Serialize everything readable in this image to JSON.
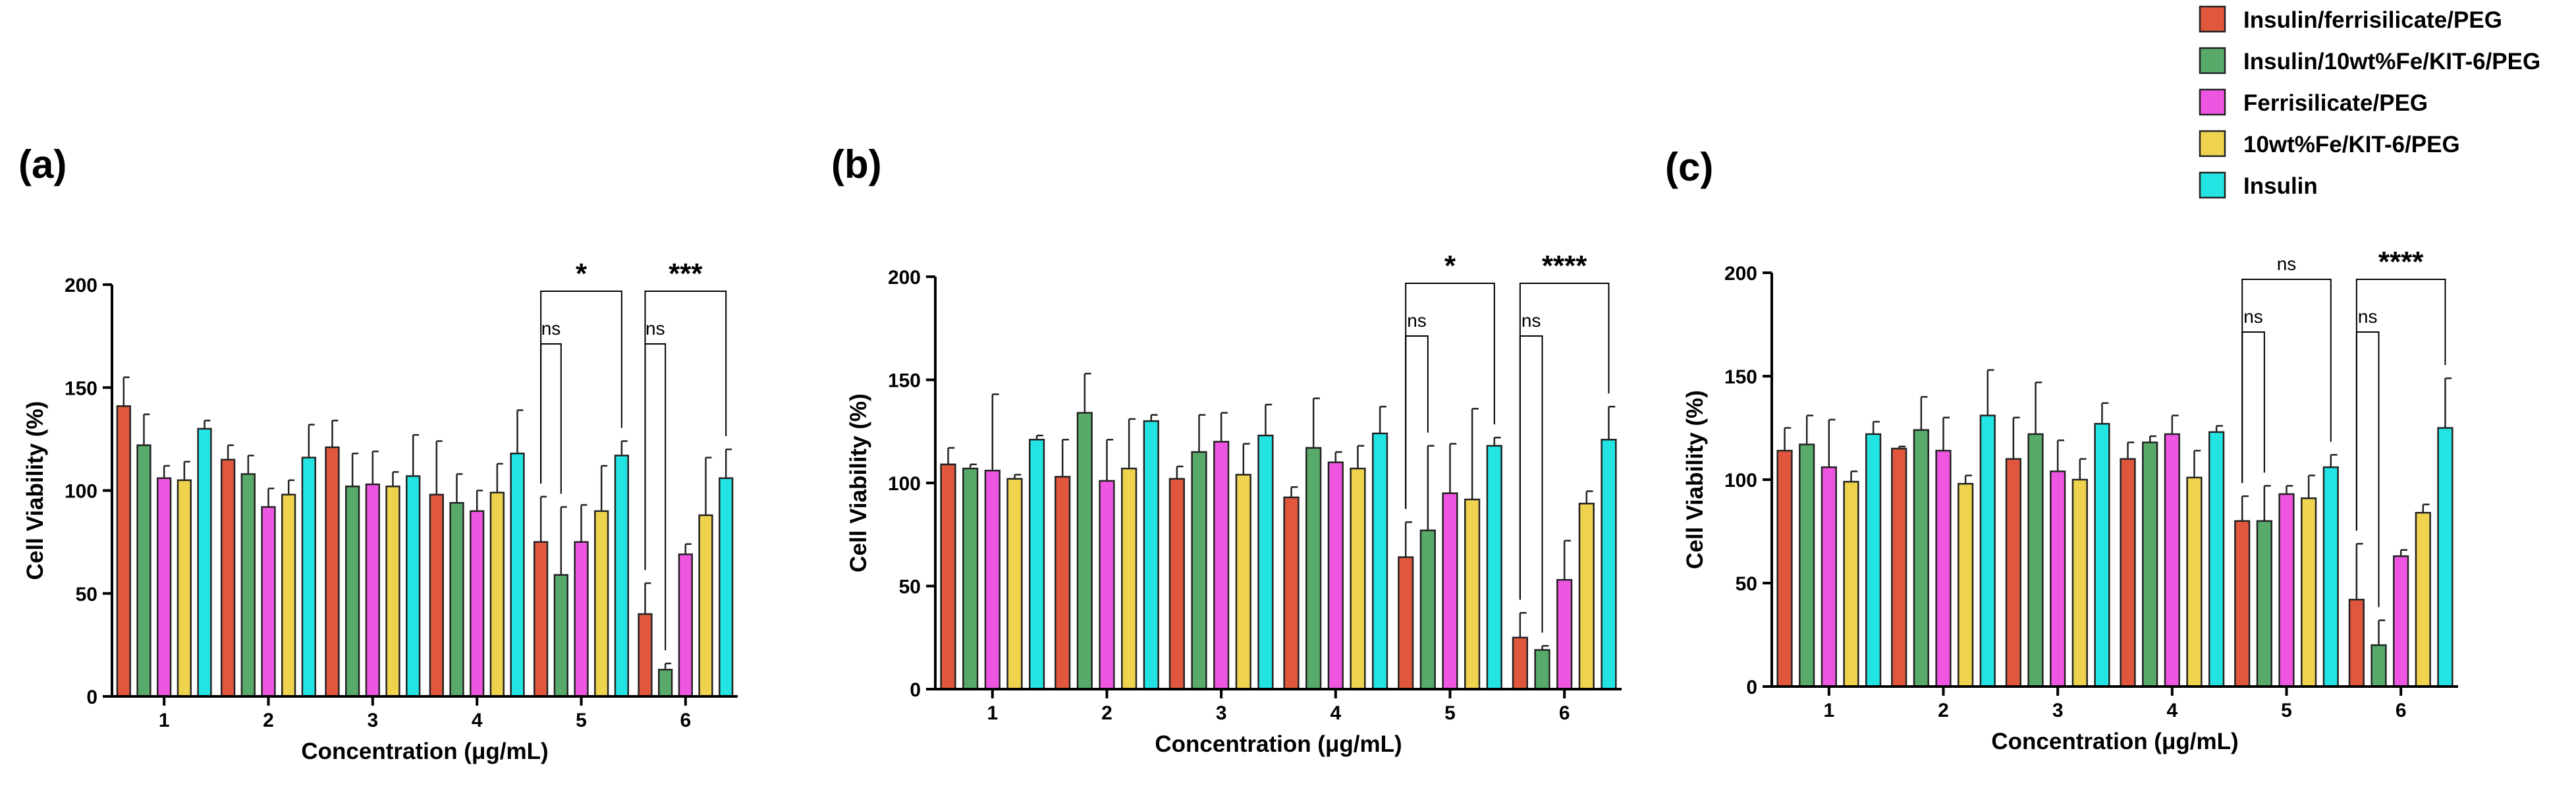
{
  "chart_data": [
    {
      "type": "bar",
      "panel_label": "(a)",
      "xlabel": "Concentration (μg/mL)",
      "ylabel": "Cell Viability (%)",
      "ylim": [
        0,
        200
      ],
      "yticks": [
        0,
        50,
        100,
        150,
        200
      ],
      "categories": [
        "1",
        "2",
        "3",
        "4",
        "5",
        "6"
      ],
      "error_bars": true,
      "series": [
        {
          "name": "Insulin/ferrisilicate/PEG",
          "values": [
            141,
            115,
            121,
            98,
            75,
            40
          ],
          "errors": [
            14,
            7,
            13,
            26,
            22,
            15
          ]
        },
        {
          "name": "Insulin/10wt%Fe/KIT-6/PEG",
          "values": [
            122,
            108,
            102,
            94,
            59,
            13
          ],
          "errors": [
            15,
            9,
            16,
            14,
            33,
            3
          ]
        },
        {
          "name": "Ferrisilicate/PEG",
          "values": [
            106,
            92,
            103,
            90,
            75,
            69
          ],
          "errors": [
            6,
            9,
            16,
            10,
            18,
            5
          ]
        },
        {
          "name": "10wt%Fe/KIT-6/PEG",
          "values": [
            105,
            98,
            102,
            99,
            90,
            88
          ],
          "errors": [
            9,
            7,
            7,
            14,
            22,
            28
          ]
        },
        {
          "name": "Insulin",
          "values": [
            130,
            116,
            107,
            118,
            117,
            106
          ],
          "errors": [
            4,
            16,
            20,
            21,
            7,
            14
          ]
        }
      ],
      "annotations": [
        {
          "category": "5",
          "from_series": 0,
          "to_series": 1,
          "text": "ns",
          "level": 1
        },
        {
          "category": "5",
          "from_series": 0,
          "to_series": 4,
          "text": "*",
          "level": 2
        },
        {
          "category": "6",
          "from_series": 0,
          "to_series": 1,
          "text": "ns",
          "level": 1
        },
        {
          "category": "6",
          "from_series": 0,
          "to_series": 4,
          "text": "***",
          "level": 2
        }
      ]
    },
    {
      "type": "bar",
      "panel_label": "(b)",
      "xlabel": "Concentration (μg/mL)",
      "ylabel": "Cell Viability (%)",
      "ylim": [
        0,
        200
      ],
      "yticks": [
        0,
        50,
        100,
        150,
        200
      ],
      "categories": [
        "1",
        "2",
        "3",
        "4",
        "5",
        "6"
      ],
      "error_bars": true,
      "series": [
        {
          "name": "Insulin/ferrisilicate/PEG",
          "values": [
            109,
            103,
            102,
            93,
            64,
            25
          ],
          "errors": [
            8,
            18,
            6,
            5,
            17,
            12
          ]
        },
        {
          "name": "Insulin/10wt%Fe/KIT-6/PEG",
          "values": [
            107,
            134,
            115,
            117,
            77,
            19
          ],
          "errors": [
            2,
            19,
            18,
            24,
            41,
            2
          ]
        },
        {
          "name": "Ferrisilicate/PEG",
          "values": [
            106,
            101,
            120,
            110,
            95,
            53
          ],
          "errors": [
            37,
            20,
            14,
            5,
            24,
            19
          ]
        },
        {
          "name": "10wt%Fe/KIT-6/PEG",
          "values": [
            102,
            107,
            104,
            107,
            92,
            90
          ],
          "errors": [
            2,
            24,
            15,
            11,
            44,
            6
          ]
        },
        {
          "name": "Insulin",
          "values": [
            121,
            130,
            123,
            124,
            118,
            121
          ],
          "errors": [
            2,
            3,
            15,
            13,
            4,
            16
          ]
        }
      ],
      "annotations": [
        {
          "category": "5",
          "from_series": 0,
          "to_series": 1,
          "text": "ns",
          "level": 1
        },
        {
          "category": "5",
          "from_series": 0,
          "to_series": 4,
          "text": "*",
          "level": 2
        },
        {
          "category": "6",
          "from_series": 0,
          "to_series": 1,
          "text": "ns",
          "level": 1
        },
        {
          "category": "6",
          "from_series": 0,
          "to_series": 4,
          "text": "****",
          "level": 2
        }
      ]
    },
    {
      "type": "bar",
      "panel_label": "(c)",
      "xlabel": "Concentration (μg/mL)",
      "ylabel": "Cell Viability (%)",
      "ylim": [
        0,
        200
      ],
      "yticks": [
        0,
        50,
        100,
        150,
        200
      ],
      "categories": [
        "1",
        "2",
        "3",
        "4",
        "5",
        "6"
      ],
      "error_bars": true,
      "series": [
        {
          "name": "Insulin/ferrisilicate/PEG",
          "values": [
            114,
            115,
            110,
            110,
            80,
            42
          ],
          "errors": [
            11,
            1,
            20,
            8,
            12,
            27
          ]
        },
        {
          "name": "Insulin/10wt%Fe/KIT-6/PEG",
          "values": [
            117,
            124,
            122,
            118,
            80,
            20
          ],
          "errors": [
            14,
            16,
            25,
            3,
            17,
            12
          ]
        },
        {
          "name": "Ferrisilicate/PEG",
          "values": [
            106,
            114,
            104,
            122,
            93,
            63
          ],
          "errors": [
            23,
            16,
            15,
            9,
            4,
            3
          ]
        },
        {
          "name": "10wt%Fe/KIT-6/PEG",
          "values": [
            99,
            98,
            100,
            101,
            91,
            84
          ],
          "errors": [
            5,
            4,
            10,
            13,
            11,
            4
          ]
        },
        {
          "name": "Insulin",
          "values": [
            122,
            131,
            127,
            123,
            106,
            125
          ],
          "errors": [
            6,
            22,
            10,
            3,
            6,
            24
          ]
        }
      ],
      "annotations": [
        {
          "category": "5",
          "from_series": 0,
          "to_series": 1,
          "text": "ns",
          "level": 1
        },
        {
          "category": "5",
          "from_series": 0,
          "to_series": 4,
          "text": "ns",
          "level": 2
        },
        {
          "category": "6",
          "from_series": 0,
          "to_series": 1,
          "text": "ns",
          "level": 1
        },
        {
          "category": "6",
          "from_series": 0,
          "to_series": 4,
          "text": "****",
          "level": 2
        }
      ]
    }
  ],
  "legend": {
    "position": "top-right",
    "items": [
      {
        "label": "Insulin/ferrisilicate/PEG",
        "color": "#E0573D"
      },
      {
        "label": "Insulin/10wt%Fe/KIT-6/PEG",
        "color": "#58AA6B"
      },
      {
        "label": "Ferrisilicate/PEG",
        "color": "#EE55E0"
      },
      {
        "label": "10wt%Fe/KIT-6/PEG",
        "color": "#EFD24D"
      },
      {
        "label": "Insulin",
        "color": "#23E3E3"
      }
    ]
  }
}
